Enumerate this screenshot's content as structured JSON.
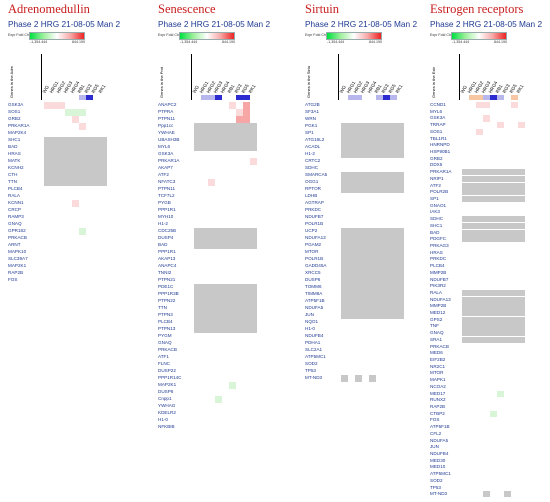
{
  "legend": {
    "label": "Expr Fold Change",
    "min": "-1,354.444",
    "max": "844.190"
  },
  "colors": {
    "gray": "#c8c8c8",
    "lightRed": "#fadada",
    "red": "#f7a6a6",
    "lightGreen": "#d8f5d8",
    "green": "#30e050",
    "blue": "#2c2cd0",
    "lightBlue": "#b7b7ee",
    "orange": "#f6c7a2"
  },
  "panels": [
    {
      "id": "adrenomedullin",
      "title": "Adrenomedullin",
      "subtitle": "Phase 2 HRG 21-08-05 Man 2",
      "genes_header": "Genes in the Adre",
      "samples": [
        "WG",
        "HRG1",
        "HRG2",
        "HRG3",
        "HRG4",
        "RB1",
        "RG3",
        "RG5",
        "RK1"
      ],
      "top": [
        [
          "#ffffff",
          "#ffffff",
          "#ffffff",
          "#ffffff",
          "#ffffff",
          "#b7b7ee",
          "#2c2cd0",
          "#ffffff",
          "#ffffff"
        ]
      ],
      "genes": [
        "GSK3A",
        "SOS1",
        "GRB2",
        "PRKAR1A",
        "MAP2K4",
        "SHC1",
        "BAD",
        "HRAS",
        "MATK",
        "KCNH2",
        "CTH",
        "TTN",
        "PLCB4",
        "RALA",
        "KCNN1",
        "CRCP",
        "RAMP3",
        "GNAQ",
        "GPR182",
        "PRKACB",
        "ARNT",
        "MAPK10",
        "SLC39A7",
        "MAP2K1",
        "RAP2B",
        "FOS"
      ],
      "rows": [
        "pppwwwwww",
        "wwwgggwww",
        "wwwwpwwww",
        "wwwwwpwww",
        "wwwwwwwww",
        "GGGGGGGGG",
        "GGGGGGGGG",
        "GGGGGGGGG",
        "GGGGGGGGG",
        "GGGGGGGGG",
        "GGGGGGGGG",
        "GGGGGGGGG",
        "wwwwwwwww",
        "wwwwwwwww",
        "wwwwpwwww",
        "wwwwwwwww",
        "wwwwwwwww",
        "wwwwwwwww",
        "wwwwwgwww",
        "wwwwwwwww",
        "wwwwwwwww",
        "wwwwwwwww",
        "wwwwwwwww",
        "wwwwwwwww",
        "wwwwwwwww",
        "wwwwwwwww"
      ]
    },
    {
      "id": "senescence",
      "title": "Senescence",
      "subtitle": "Phase 2 HRG 21-08-05 Man 2",
      "genes_header": "Genes in the Prot",
      "samples": [
        "WG",
        "HRG1",
        "HRG2",
        "HRG3",
        "HRG4",
        "RB1",
        "RG3",
        "RG5",
        "RK1"
      ],
      "top": [
        [
          "#ffffff",
          "#b7b7ee",
          "#b7b7ee",
          "#2c2cd0",
          "#ffffff",
          "#ffffff",
          "#2c2cd0",
          "#2c2cd0",
          "#ffffff"
        ]
      ],
      "genes": [
        "ANAPC2",
        "PTPRA",
        "PTPN11",
        "Ppp1cc",
        "YWHAE",
        "UBASH3B",
        "MYL6",
        "GSK3A",
        "PRKAR1A",
        "AKAP7",
        "ATF2",
        "NFATC3",
        "PTPN11",
        "TCF7L2",
        "PYGB",
        "PPP1R1",
        "MYH10",
        "H1-2",
        "CDC25B",
        "DUSP4",
        "BAD",
        "PPP1R1",
        "AKAP13",
        "ANAPC4",
        "TNNI2",
        "PTPN21",
        "PDE1C",
        "PPP1R3B",
        "PTPN22",
        "TTN",
        "PTPN3",
        "PLCB4",
        "PTPN13",
        "PYGM",
        "GNAQ",
        "PRKACB",
        "ATF1",
        "FLNC",
        "DUSP22",
        "PPP1R14C",
        "MAP2K1",
        "DUSP6",
        "Cnpp1",
        "YWHAG",
        "KDELR2",
        "H1-0",
        "NFKBIB"
      ],
      "rows": [
        "wwwwwpwrw",
        "wwwwwwprw",
        "wwwwwwrrw",
        "GGGGGGGGG",
        "GGGGGGGGG",
        "GGGGGGGGG",
        "GGGGGGGGG",
        "wwwwwwwww",
        "wwwwwwwwp",
        "wwwwwwwww",
        "wwwwwwwww",
        "wwpwwwwww",
        "wwwwwwwww",
        "wwwwwwwww",
        "wwwwwwwww",
        "wwwwwwwww",
        "wwwwwwwww",
        "wwwwwwwww",
        "GGGGGGGGG",
        "GGGGGGGGG",
        "GGGGGGGGG",
        "wwwwwwwww",
        "wwwwwwwww",
        "wwwwwwwww",
        "wwwwwwwww",
        "wwwwwwwww",
        "GGGGGGGGG",
        "GGGGGGGGG",
        "GGGGGGGGG",
        "GGGGGGGGG",
        "GGGGGGGGG",
        "GGGGGGGGG",
        "GGGGGGGGG",
        "wwwwwwwww",
        "wwwwwwwww",
        "wwwwwwwww",
        "wwwwwwwww",
        "wwwwwwwww",
        "wwwwwwwww",
        "wwwwwwwww",
        "wwwwwgwww",
        "wwwwwwwww",
        "wwwgwwwww",
        "wwwwwwwww",
        "wwwwwwwww",
        "wwwwwwwww",
        "wwwwwwwww"
      ]
    },
    {
      "id": "sirtuin",
      "title": "Sirtuin",
      "subtitle": "Phase 2 HRG 21-08-05 Man 2",
      "genes_header": "Genes in the Sirtu",
      "samples": [
        "WG",
        "HRG1",
        "HRG2",
        "HRG3",
        "HRG4",
        "RB1",
        "RG3",
        "RG5",
        "RK1"
      ],
      "top": [
        [
          "#ffffff",
          "#b7b7ee",
          "#b7b7ee",
          "#ffffff",
          "#ffffff",
          "#b7b7ee",
          "#2c2cd0",
          "#b7b7ee",
          "#ffffff"
        ]
      ],
      "genes": [
        "ATG2B",
        "SF3A1",
        "WRN",
        "PGK1",
        "SP1",
        "ATG16L2",
        "ACADL",
        "H1-2",
        "CRTC2",
        "SDHC",
        "SMARCA5",
        "OGG1",
        "RPTOR",
        "LDHB",
        "AGTRAP",
        "PRKDC",
        "NDUFB7",
        "POLR1B",
        "UCP2",
        "NDUFA13",
        "PGAM2",
        "MTOR",
        "POLR1B",
        "GADD45A",
        "XRCC5",
        "DUSP6",
        "TOMM6",
        "TIMM8A",
        "ATP5F1B",
        "NDUFA5",
        "JUN",
        "NQO1",
        "H1-0",
        "NDUFB4",
        "PDHA1",
        "SLC2A1",
        "ATP5MC1",
        "SOD2",
        "TP53",
        "MT-ND3"
      ],
      "rows": [
        "wwwwwwwww",
        "wwwwwwwww",
        "wwwwwwwww",
        "GGGGGGGGG",
        "GGGGGGGGG",
        "GGGGGGGGG",
        "GGGGGGGGG",
        "GGGGGGGGG",
        "wwwwwwwww",
        "wwwwwwwww",
        "GGGGGGGGG",
        "GGGGGGGGG",
        "GGGGGGGGG",
        "wwwwwwwww",
        "wwwwwwwww",
        "wwwwwwwww",
        "wwwwwwwww",
        "wwwwwwwww",
        "GGGGGGGGG",
        "GGGGGGGGG",
        "GGGGGGGGG",
        "GGGGGGGGG",
        "GGGGGGGGG",
        "GGGGGGGGG",
        "GGGGGGGGG",
        "GGGGGGGGG",
        "GGGGGGGGG",
        "GGGGGGGGG",
        "GGGGGGGGG",
        "GGGGGGGGG",
        "GGGGGGGGG",
        "wwwwwwwww",
        "wwwwwwwww",
        "wwwwwwwww",
        "wwwwwwwww",
        "wwwwwwwww",
        "wwwwwwwww",
        "wwwwwwwww",
        "wwwwwwwww",
        "GwGwGwwww"
      ]
    },
    {
      "id": "estrogen",
      "title": "Estrogen receptors",
      "subtitle": "Phase 2 HRG 21-08-05 Man 2",
      "genes_header": "Genes in the Estr",
      "samples": [
        "WG",
        "HRG1",
        "HRG2",
        "HRG3",
        "HRG4",
        "RB1",
        "RG3",
        "RG5",
        "RK1"
      ],
      "top": [
        [
          "#ffffff",
          "#f6c7a2",
          "#f6c7a2",
          "#b7b7ee",
          "#2c2cd0",
          "#b7b7ee",
          "#ffffff",
          "#f6c7a2",
          "#ffffff"
        ]
      ],
      "genes": [
        "CCND1",
        "MYL6",
        "GSK3A",
        "TRRAP",
        "SOS1",
        "TBL1R1",
        "HNRNPD",
        "HSP90B1",
        "GRB2",
        "DDX5",
        "PRKAR1A",
        "NRIP1",
        "ATF2",
        "POLR2B",
        "SP1",
        "GNAO1",
        "IAK3",
        "SDHC",
        "SHC1",
        "BAD",
        "PDGFC",
        "PRKAG3",
        "HRAS",
        "PRKDC",
        "PLCB4",
        "MMP2B",
        "NDUFB7",
        "PIK3R2",
        "RALA",
        "NDUFA13",
        "MMP2B",
        "MED12",
        "GPS2",
        "TNF",
        "GNAQ",
        "SRA1",
        "PRKACB",
        "MED6",
        "EIF2B2",
        "NR2C1",
        "MTOR",
        "MAPK1",
        "NCOA2",
        "MED17",
        "RUNX2",
        "RAP2B",
        "CTBP2",
        "FOS",
        "ATP5F1B",
        "CFL2",
        "NDUFA5",
        "JUN",
        "NDUFB4",
        "MED30",
        "MED10",
        "ATP5MC1",
        "SOD2",
        "TP53",
        "MT-ND3"
      ],
      "rows": [
        "wwppwwwpw",
        "wwwwwwwww",
        "wwwpwwwww",
        "wwwwwpwwp",
        "wwpwwwwww",
        "wwwwwwwww",
        "wwwwwwwww",
        "wwwwwwwww",
        "wwwwwwwww",
        "wwwwwwwww",
        "GGGGGGGGG",
        "GGGGGGGGG",
        "GGGGGGGGG",
        "GGGGGGGGG",
        "GGGGGGGGG",
        "wwwwwwwww",
        "wwwwwwwww",
        "GGGGGGGGG",
        "GGGGGGGGG",
        "GGGGGGGGG",
        "GGGGGGGGG",
        "wwwwwwwww",
        "wwwwwwwww",
        "wwwwwwwww",
        "wwwwwwwww",
        "wwwwwwwww",
        "wwwwwwwww",
        "wwwwwwwww",
        "GGGGGGGGG",
        "GGGGGGGGG",
        "GGGGGGGGG",
        "GGGGGGGGG",
        "GGGGGGGGG",
        "GGGGGGGGG",
        "GGGGGGGGG",
        "GGGGGGGGG",
        "wwwwwwwww",
        "wwwwwwwww",
        "wwwwwwwww",
        "wwwwwwwww",
        "wwwwwwwww",
        "wwwwwwwww",
        "wwwwwwwww",
        "wwwwwgwww",
        "wwwwwwwww",
        "wwwwwwwww",
        "wwwwgwwww",
        "wwwwwwwww",
        "wwwwwwwww",
        "wwwwwwwww",
        "wwwwwwwww",
        "wwwwwwwww",
        "wwwwwwwww",
        "wwwwwwwww",
        "wwwwwwwww",
        "wwwwwwwww",
        "wwwwwwwww",
        "wwwwwwwww",
        "wwwGwwGww"
      ]
    }
  ]
}
